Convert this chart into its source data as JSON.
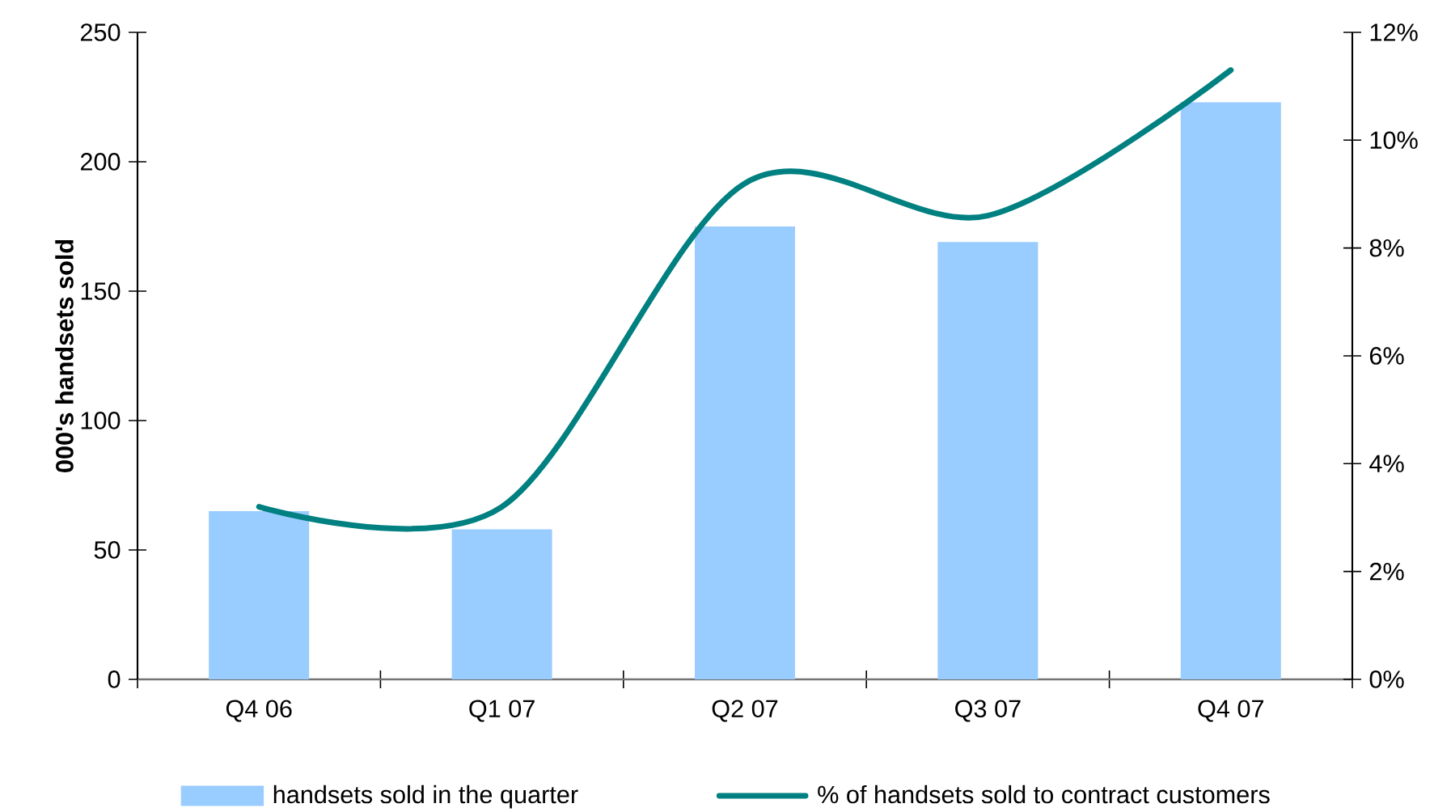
{
  "chart_data": {
    "type": "bar",
    "ylabel": "000's handsets sold",
    "categories": [
      "Q4 06",
      "Q1 07",
      "Q2 07",
      "Q3 07",
      "Q4 07"
    ],
    "series": [
      {
        "name": "handsets sold in the quarter",
        "color": "#99ccff",
        "values": [
          65,
          58,
          175,
          169,
          223
        ]
      },
      {
        "name": "% of handsets sold to contract customers",
        "type": "line",
        "axis": "y2",
        "color": "#008080",
        "line_style": "solid",
        "values": [
          3.2,
          3.2,
          9.2,
          8.6,
          11.3
        ]
      }
    ],
    "ylim": [
      0,
      250
    ],
    "yticks": [
      0,
      50,
      100,
      150,
      200,
      250
    ],
    "y2lim": [
      0,
      12
    ],
    "y2ticks": [
      {
        "value": 0,
        "label": "0%"
      },
      {
        "value": 2,
        "label": "2%"
      },
      {
        "value": 4,
        "label": "4%"
      },
      {
        "value": 6,
        "label": "6%"
      },
      {
        "value": 8,
        "label": "8%"
      },
      {
        "value": 10,
        "label": "10%"
      },
      {
        "value": 12,
        "label": "12%"
      }
    ],
    "legend": "bottom",
    "marker": "none"
  }
}
